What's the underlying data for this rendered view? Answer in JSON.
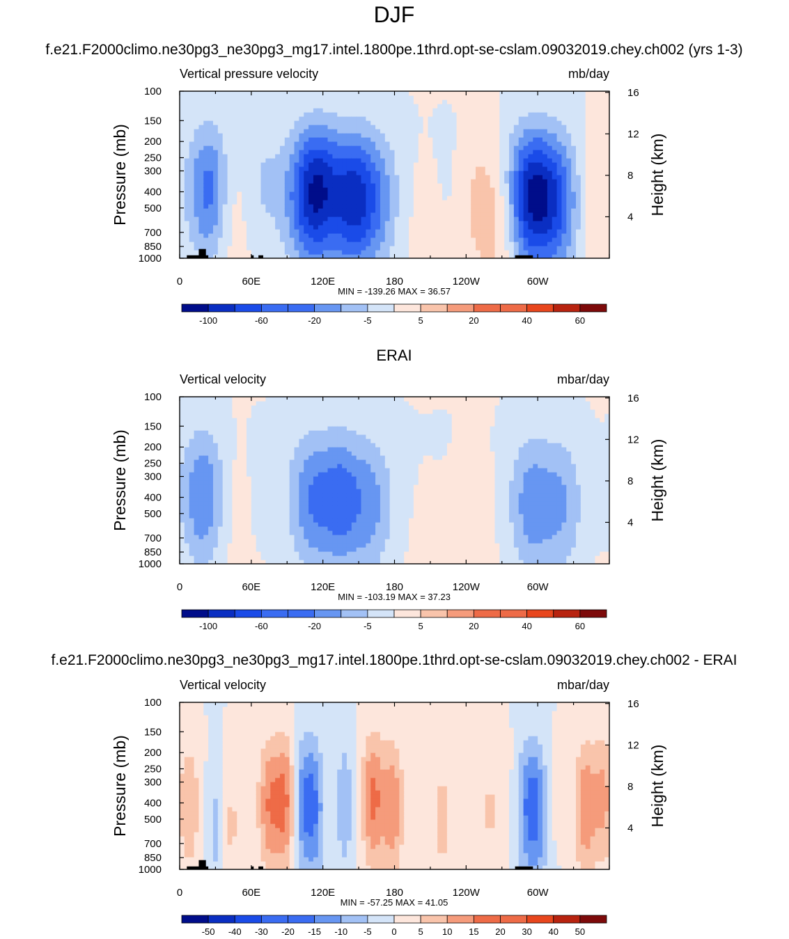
{
  "figure": {
    "title": "DJF"
  },
  "chart_data": [
    {
      "type": "heatmap",
      "panel_title": "f.e21.F2000climo.ne30pg3_ne30pg3_mg17.intel.1800pe.1thrd.opt-se-cslam.09032019.chey.ch002 (yrs 1-3)",
      "variable_label": "Vertical pressure velocity",
      "units": "mb/day",
      "ylabel": "Pressure (mb)",
      "ylabel_right": "Height (km)",
      "x_ticks": [
        "0",
        "60E",
        "120E",
        "180",
        "120W",
        "60W"
      ],
      "y_ticks": [
        "100",
        "150",
        "200",
        "250",
        "300",
        "400",
        "500",
        "700",
        "850",
        "1000"
      ],
      "y_ticks_right": [
        "16",
        "12",
        "8",
        "4"
      ],
      "stats": "MIN = -139.26  MAX =  36.57",
      "colorbar_labels": [
        "-100",
        "-60",
        "-20",
        "-5",
        "5",
        "20",
        "40",
        "60"
      ],
      "ylim": [
        1000,
        100
      ],
      "xlim": [
        0,
        360
      ],
      "features": [
        {
          "lon": 25,
          "p": 350,
          "value": -60
        },
        {
          "lon": 42,
          "p": 420,
          "value": 20
        },
        {
          "lon": 70,
          "p": 320,
          "value": -15
        },
        {
          "lon": 105,
          "p": 400,
          "value": -60
        },
        {
          "lon": 120,
          "p": 350,
          "value": -70
        },
        {
          "lon": 145,
          "p": 420,
          "value": -80
        },
        {
          "lon": 165,
          "p": 420,
          "value": -40
        },
        {
          "lon": 205,
          "p": 450,
          "value": 10
        },
        {
          "lon": 250,
          "p": 400,
          "value": 25
        },
        {
          "lon": 270,
          "p": 600,
          "value": 20
        },
        {
          "lon": 290,
          "p": 400,
          "value": -70
        },
        {
          "lon": 305,
          "p": 400,
          "value": -60
        },
        {
          "lon": 320,
          "p": 450,
          "value": -40
        },
        {
          "lon": 350,
          "p": 400,
          "value": 20
        }
      ]
    },
    {
      "type": "heatmap",
      "panel_title": "ERAI",
      "variable_label": "Vertical velocity",
      "units": "mbar/day",
      "ylabel": "Pressure (mb)",
      "ylabel_right": "Height (km)",
      "x_ticks": [
        "0",
        "60E",
        "120E",
        "180",
        "120W",
        "60W"
      ],
      "y_ticks": [
        "100",
        "150",
        "200",
        "250",
        "300",
        "400",
        "500",
        "700",
        "850",
        "1000"
      ],
      "y_ticks_right": [
        "16",
        "12",
        "8",
        "4"
      ],
      "stats": "MIN = -103.19  MAX =  37.23",
      "colorbar_labels": [
        "-100",
        "-60",
        "-20",
        "-5",
        "5",
        "20",
        "40",
        "60"
      ],
      "ylim": [
        1000,
        100
      ],
      "xlim": [
        0,
        360
      ],
      "features": [
        {
          "lon": 20,
          "p": 350,
          "value": -50
        },
        {
          "lon": 45,
          "p": 380,
          "value": 12
        },
        {
          "lon": 110,
          "p": 380,
          "value": -45
        },
        {
          "lon": 135,
          "p": 380,
          "value": -55
        },
        {
          "lon": 160,
          "p": 420,
          "value": -35
        },
        {
          "lon": 205,
          "p": 450,
          "value": 8
        },
        {
          "lon": 250,
          "p": 380,
          "value": 12
        },
        {
          "lon": 235,
          "p": 650,
          "value": 15
        },
        {
          "lon": 295,
          "p": 420,
          "value": -40
        },
        {
          "lon": 320,
          "p": 420,
          "value": -30
        },
        {
          "lon": 350,
          "p": 300,
          "value": 5
        }
      ]
    },
    {
      "type": "heatmap",
      "panel_title": "f.e21.F2000climo.ne30pg3_ne30pg3_mg17.intel.1800pe.1thrd.opt-se-cslam.09032019.chey.ch002 - ERAI",
      "variable_label": "Vertical velocity",
      "units": "mbar/day",
      "ylabel": "Pressure (mb)",
      "ylabel_right": "Height (km)",
      "x_ticks": [
        "0",
        "60E",
        "120E",
        "180",
        "120W",
        "60W"
      ],
      "y_ticks": [
        "100",
        "150",
        "200",
        "250",
        "300",
        "400",
        "500",
        "700",
        "850",
        "1000"
      ],
      "y_ticks_right": [
        "16",
        "12",
        "8",
        "4"
      ],
      "stats": "MIN = -57.25  MAX =  41.05",
      "colorbar_labels": [
        "-50",
        "-40",
        "-30",
        "-20",
        "-15",
        "-10",
        "-5",
        "0",
        "5",
        "10",
        "15",
        "20",
        "30",
        "40",
        "50"
      ],
      "ylim": [
        1000,
        100
      ],
      "xlim": [
        0,
        360
      ],
      "features": [
        {
          "lon": 8,
          "p": 400,
          "value": 15
        },
        {
          "lon": 30,
          "p": 500,
          "value": -15
        },
        {
          "lon": 42,
          "p": 600,
          "value": 10
        },
        {
          "lon": 75,
          "p": 380,
          "value": 25
        },
        {
          "lon": 88,
          "p": 350,
          "value": 30
        },
        {
          "lon": 103,
          "p": 350,
          "value": -25
        },
        {
          "lon": 113,
          "p": 380,
          "value": -30
        },
        {
          "lon": 138,
          "p": 350,
          "value": -20
        },
        {
          "lon": 162,
          "p": 330,
          "value": 30
        },
        {
          "lon": 178,
          "p": 400,
          "value": 25
        },
        {
          "lon": 220,
          "p": 550,
          "value": 10
        },
        {
          "lon": 260,
          "p": 450,
          "value": 8
        },
        {
          "lon": 290,
          "p": 380,
          "value": -25
        },
        {
          "lon": 300,
          "p": 400,
          "value": -30
        },
        {
          "lon": 340,
          "p": 400,
          "value": 25
        },
        {
          "lon": 355,
          "p": 330,
          "value": 20
        }
      ]
    }
  ],
  "colors": {
    "blue_to_red": [
      "#000d8a",
      "#0a2ec2",
      "#1a4be8",
      "#3a6cf2",
      "#6796f2",
      "#a2c1f5",
      "#d4e4f8",
      "#fde6dc",
      "#f9c4ab",
      "#f59b7b",
      "#ee6b47",
      "#e8461d",
      "#b8230f",
      "#7d0a0a"
    ],
    "land": "#000000"
  }
}
